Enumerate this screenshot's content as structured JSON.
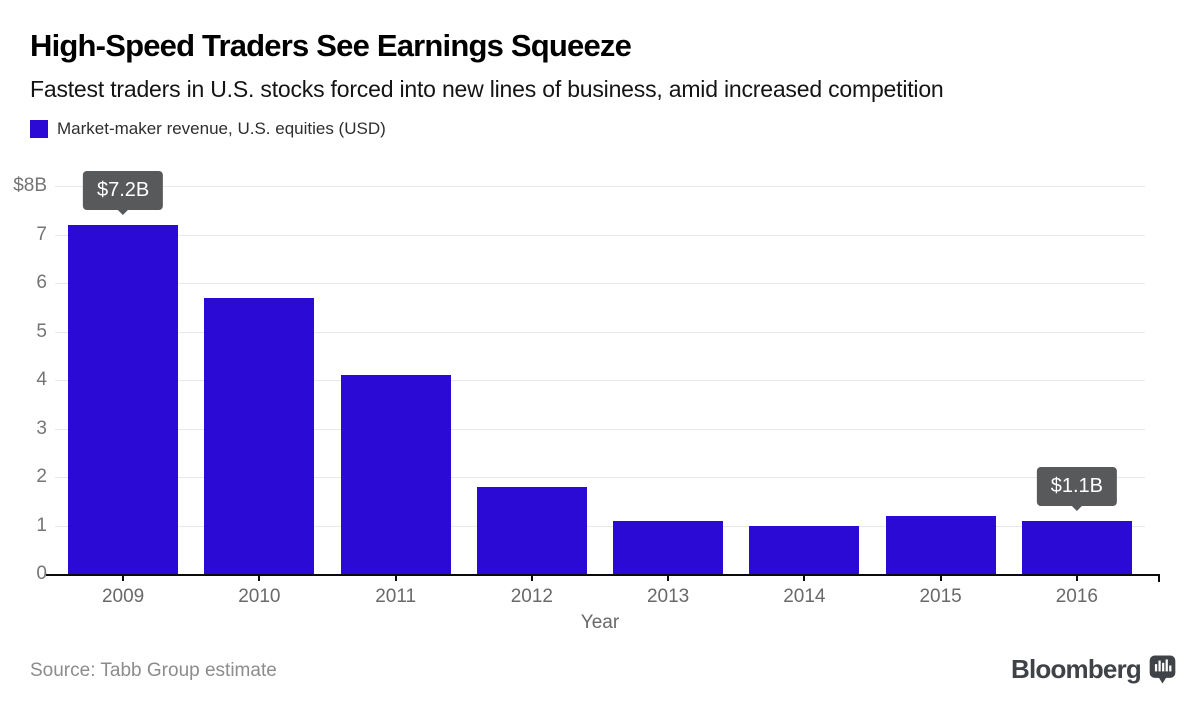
{
  "header": {
    "title": "High-Speed Traders See Earnings Squeeze",
    "subtitle": "Fastest traders in U.S. stocks forced into new lines of business, amid increased competition"
  },
  "legend": {
    "label": "Market-maker revenue, U.S. equities (USD)",
    "swatch_color": "#2a0ad4"
  },
  "chart_data": {
    "type": "bar",
    "title": "Market-maker revenue, U.S. equities (USD)",
    "categories": [
      "2009",
      "2010",
      "2011",
      "2012",
      "2013",
      "2014",
      "2015",
      "2016"
    ],
    "values": [
      7.2,
      5.7,
      4.1,
      1.8,
      1.1,
      1.0,
      1.2,
      1.1
    ],
    "xlabel": "Year",
    "ylabel": "",
    "ylim": [
      0,
      8
    ],
    "ytick_values": [
      0,
      1,
      2,
      3,
      4,
      5,
      6,
      7,
      8
    ],
    "ytick_labels": [
      "0",
      "1",
      "2",
      "3",
      "4",
      "5",
      "6",
      "7",
      "$8B"
    ],
    "grid": true,
    "legend_position": "top-left",
    "bar_color": "#2a0ad4",
    "annotations": [
      {
        "category": "2009",
        "label": "$7.2B"
      },
      {
        "category": "2016",
        "label": "$1.1B"
      }
    ]
  },
  "footer": {
    "source": "Source: Tabb Group estimate",
    "brand": "Bloomberg"
  },
  "colors": {
    "bar": "#2a0ad4",
    "tooltip_bg": "#58595b",
    "gridline": "#e8e8e8",
    "axis_text": "#757575",
    "source_text": "#8c8c8c",
    "brand_text": "#3f4347"
  }
}
